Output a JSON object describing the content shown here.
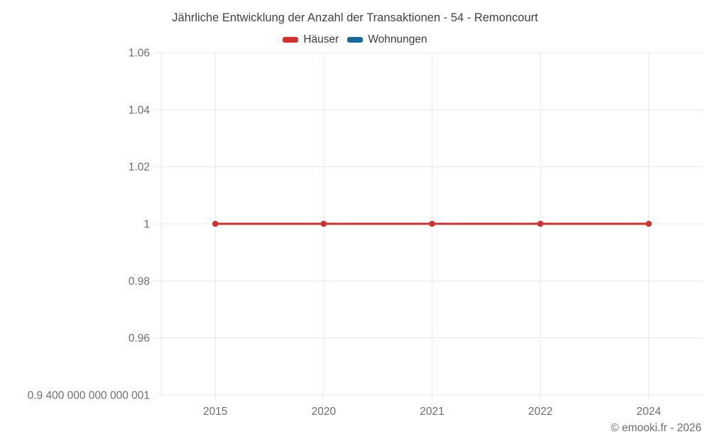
{
  "title": "Jährliche Entwicklung der Anzahl der Transaktionen - 54 - Remoncourt",
  "legend": {
    "items": [
      {
        "label": "Häuser",
        "color": "#d32f2f"
      },
      {
        "label": "Wohnungen",
        "color": "#17699e"
      }
    ]
  },
  "footer": {
    "copyright": "© emooki.fr - 2026"
  },
  "colors": {
    "grid": "#e8e8e8",
    "tick_text": "#6e6e6e",
    "title_text": "#424242"
  },
  "chart_data": {
    "type": "line",
    "title": "Jährliche Entwicklung der Anzahl der Transaktionen - 54 - Remoncourt",
    "xlabel": "",
    "ylabel": "",
    "grid": true,
    "legend_position": "top",
    "categories": [
      "2015",
      "2020",
      "2021",
      "2022",
      "2024"
    ],
    "series": [
      {
        "name": "Häuser",
        "color": "#d32f2f",
        "values": [
          1,
          1,
          1,
          1,
          1
        ]
      },
      {
        "name": "Wohnungen",
        "color": "#17699e",
        "values": []
      }
    ],
    "y_axis": {
      "min": 0.9400000000000001,
      "max": 1.06,
      "tick_values": [
        1.06,
        1.04,
        1.02,
        1,
        0.98,
        0.96,
        0.9400000000000001
      ],
      "tick_labels": [
        "1.06",
        "1.04",
        "1.02",
        "1",
        "0.98",
        "0.96",
        "0.9 400 000 000 000 001"
      ]
    }
  }
}
